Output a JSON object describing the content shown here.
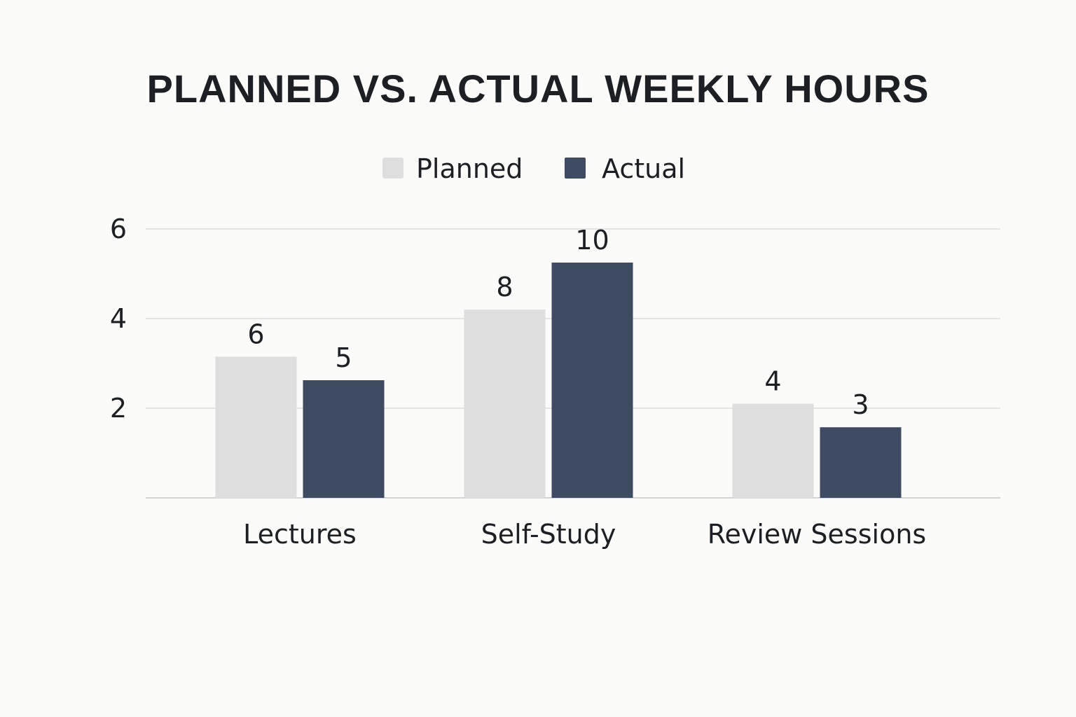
{
  "chart_data": {
    "type": "bar",
    "title": "PLANNED VS. ACTUAL WEEKLY HOURS",
    "categories": [
      "Lectures",
      "Self-Study",
      "Review Sessions"
    ],
    "series": [
      {
        "name": "Planned",
        "values": [
          6,
          8,
          4
        ],
        "color": "#dedede"
      },
      {
        "name": "Actual",
        "values": [
          5,
          10,
          3
        ],
        "color": "#3f4b62"
      }
    ],
    "yticks": [
      2,
      4,
      6
    ],
    "legend_position": "top-center",
    "grid": true
  }
}
